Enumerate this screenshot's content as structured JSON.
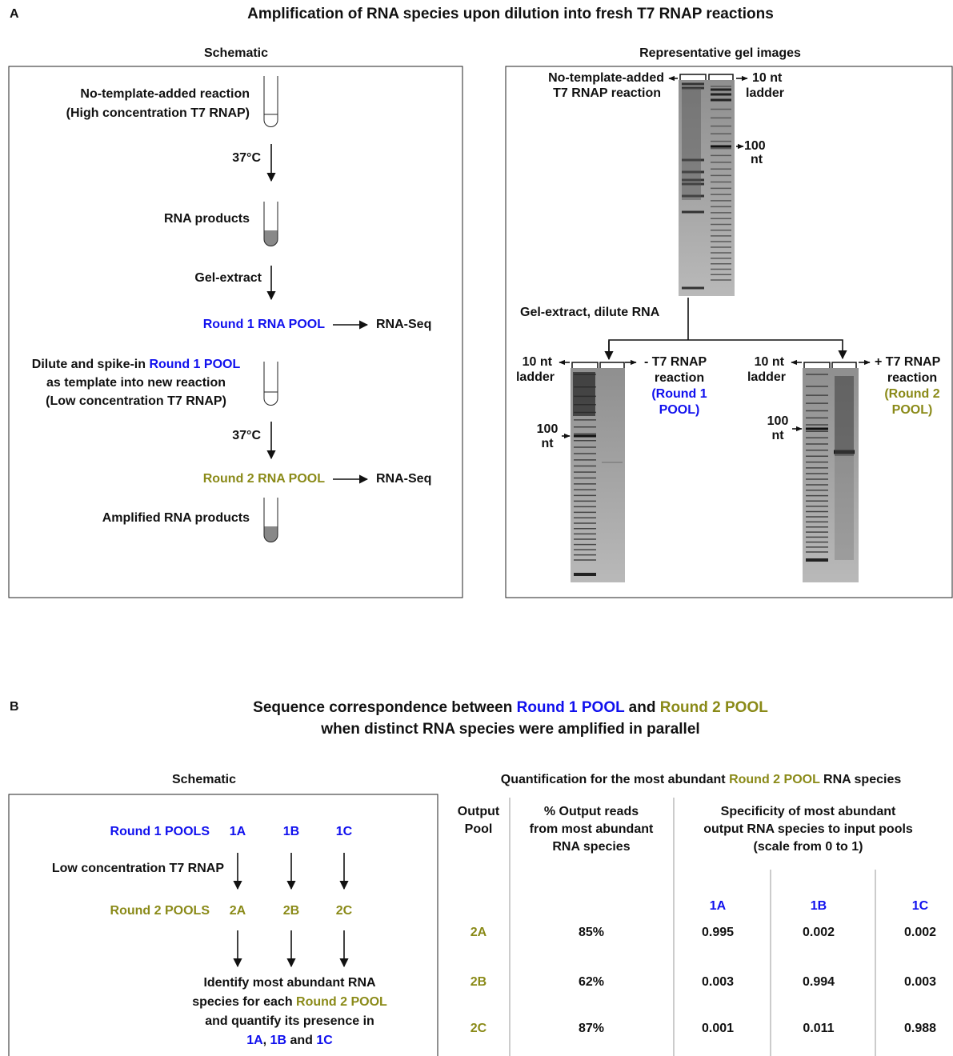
{
  "panel_a": {
    "label": "A",
    "title": "Amplification of RNA species upon dilution into fresh T7 RNAP reactions",
    "schematic": {
      "title": "Schematic",
      "start_reaction": [
        "No-template-added reaction",
        "(High concentration T7 RNAP)"
      ],
      "incubation_1": "37°C",
      "products": "RNA products",
      "gel_extract": "Gel-extract",
      "round_1_pool": "Round 1 RNA POOL",
      "seq_1": "RNA-Seq",
      "dilute": [
        "Dilute and spike-in ",
        "Round 1 POOL",
        "as template into new reaction",
        "(Low concentration T7 RNAP)"
      ],
      "incubation_2": "37°C",
      "round_2_pool": "Round 2 RNA POOL",
      "seq_2": "RNA-Seq",
      "amplified": "Amplified RNA products"
    },
    "gels": {
      "title": "Representative gel images",
      "gel_1": {
        "sample": [
          "No-template-added",
          "T7 RNAP reaction"
        ],
        "ladder": [
          "10 nt",
          "ladder"
        ],
        "marker": [
          "100",
          "nt"
        ]
      },
      "step": "Gel-extract, dilute RNA",
      "gel_2": {
        "ladder": [
          "10 nt",
          "ladder"
        ],
        "marker": [
          "100",
          "nt"
        ],
        "sample": [
          "- T7 RNAP",
          "reaction",
          "(Round 1",
          "POOL)"
        ]
      },
      "gel_3": {
        "ladder": [
          "10 nt",
          "ladder"
        ],
        "marker": [
          "100",
          "nt"
        ],
        "sample": [
          "+ T7 RNAP",
          "reaction",
          "(Round 2",
          "POOL)"
        ]
      }
    }
  },
  "panel_b": {
    "label": "B",
    "title": [
      "Sequence correspondence between ",
      "Round 1 POOL",
      " and ",
      "Round 2 POOL",
      "when distinct RNA species were amplified in parallel"
    ],
    "schematic": {
      "title": "Schematic",
      "round_1_label": "Round 1 POOLS",
      "round_1_pools": [
        "1A",
        "1B",
        "1C"
      ],
      "condition": "Low concentration T7 RNAP",
      "round_2_label": "Round 2 POOLS",
      "round_2_pools": [
        "2A",
        "2B",
        "2C"
      ],
      "note": [
        "Identify most abundant RNA",
        "species for each ",
        "Round 2 POOL",
        "and quantify its presence in",
        "1A",
        ", ",
        "1B",
        " and ",
        "1C"
      ]
    },
    "table": {
      "title": [
        "Quantification for the most abundant ",
        "Round 2 POOL",
        " RNA species"
      ],
      "headers": [
        [
          "Output",
          "Pool"
        ],
        [
          "% Output reads",
          "from most abundant",
          "RNA species"
        ],
        [
          "Specificity of most abundant",
          "output RNA species to input pools",
          "(scale from 0 to 1)"
        ]
      ],
      "input_pools": [
        "1A",
        "1B",
        "1C"
      ],
      "rows": [
        [
          "2A",
          "85%",
          "0.995",
          "0.002",
          "0.002"
        ],
        [
          "2B",
          "62%",
          "0.003",
          "0.994",
          "0.003"
        ],
        [
          "2C",
          "87%",
          "0.001",
          "0.011",
          "0.988"
        ]
      ]
    }
  }
}
